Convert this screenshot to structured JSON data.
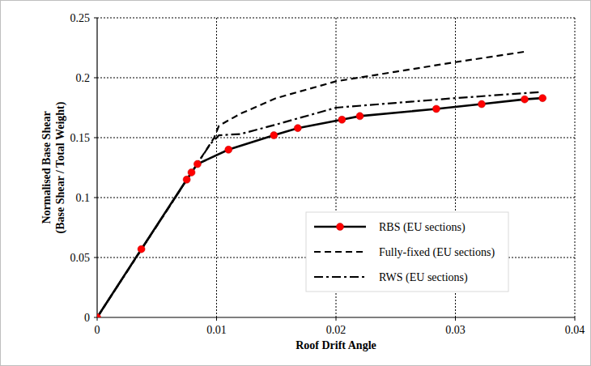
{
  "chart_data": {
    "type": "line",
    "x_label": "Roof Drift Angle",
    "y_label": [
      "Normalised Base Shear",
      "(Base Shear / Total Weight)"
    ],
    "xlim": [
      0,
      0.04
    ],
    "xticks": [
      0,
      0.01,
      0.02,
      0.03,
      0.04
    ],
    "ylim": [
      0,
      0.25
    ],
    "yticks": [
      0,
      0.05,
      0.1,
      0.15,
      0.2,
      0.25
    ],
    "grid": true,
    "legend": "lower right",
    "series": [
      {
        "name": "RBS (EU sections)",
        "color": "#000000",
        "marker": "circle",
        "line_style": "solid",
        "x": [
          0,
          0.0037,
          0.0075,
          0.0079,
          0.0084,
          0.011,
          0.0148,
          0.0168,
          0.0205,
          0.022,
          0.0284,
          0.0322,
          0.0358,
          0.0373
        ],
        "values": [
          0,
          0.057,
          0.115,
          0.121,
          0.128,
          0.14,
          0.152,
          0.158,
          0.165,
          0.168,
          0.174,
          0.178,
          0.182,
          0.183
        ]
      },
      {
        "name": "Fully-fixed (EU sections)",
        "color": "#000000",
        "marker": "none",
        "line_style": "dashed",
        "x": [
          0,
          0.0085,
          0.0098,
          0.0102,
          0.012,
          0.015,
          0.02,
          0.025,
          0.03,
          0.036
        ],
        "values": [
          0,
          0.13,
          0.15,
          0.16,
          0.17,
          0.183,
          0.197,
          0.205,
          0.213,
          0.222
        ]
      },
      {
        "name": "RWS (EU sections)",
        "color": "#000000",
        "marker": "none",
        "line_style": "dashdot",
        "x": [
          0,
          0.0085,
          0.0095,
          0.0102,
          0.012,
          0.015,
          0.02,
          0.025,
          0.03,
          0.037
        ],
        "values": [
          0,
          0.13,
          0.145,
          0.152,
          0.153,
          0.161,
          0.175,
          0.179,
          0.183,
          0.188
        ]
      }
    ]
  }
}
